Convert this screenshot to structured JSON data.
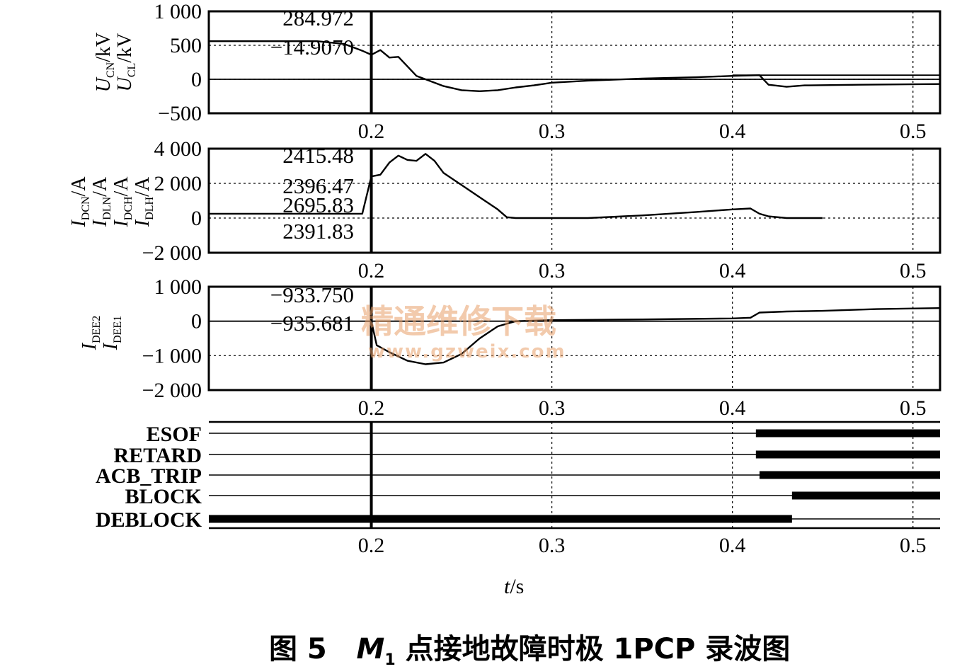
{
  "chart_data": {
    "type": "line",
    "x_ticks": [
      "0.2",
      "0.3",
      "0.4",
      "0.5"
    ],
    "xlim": [
      0.11,
      0.515
    ],
    "xlabel": {
      "var": "t",
      "unit": "/s"
    },
    "cursor_x": 0.2,
    "panels": [
      {
        "id": "voltage",
        "ylim": [
          -500,
          1000
        ],
        "y_ticks": [
          1000,
          500,
          0,
          -500
        ],
        "y_tick_labels": [
          "1 000",
          "500",
          "0",
          "−500"
        ],
        "ylabels": [
          {
            "main": "U",
            "sub": "CN",
            "unit": "/kV"
          },
          {
            "main": "U",
            "sub": "CL",
            "unit": "/kV"
          }
        ],
        "cursor_values": [
          "284.972",
          "−14.9070"
        ],
        "series": [
          {
            "values": [
              [
                0.11,
                560
              ],
              [
                0.17,
                560
              ],
              [
                0.185,
                520
              ],
              [
                0.195,
                420
              ],
              [
                0.2,
                360
              ],
              [
                0.205,
                430
              ],
              [
                0.21,
                320
              ],
              [
                0.215,
                330
              ],
              [
                0.22,
                190
              ],
              [
                0.225,
                50
              ],
              [
                0.23,
                0
              ],
              [
                0.24,
                -100
              ],
              [
                0.25,
                -160
              ],
              [
                0.26,
                -175
              ],
              [
                0.27,
                -160
              ],
              [
                0.28,
                -120
              ],
              [
                0.29,
                -90
              ],
              [
                0.3,
                -50
              ],
              [
                0.32,
                -20
              ],
              [
                0.35,
                10
              ],
              [
                0.38,
                30
              ],
              [
                0.4,
                50
              ],
              [
                0.415,
                60
              ],
              [
                0.42,
                -80
              ],
              [
                0.43,
                -110
              ],
              [
                0.44,
                -90
              ],
              [
                0.47,
                -80
              ],
              [
                0.515,
                -70
              ]
            ]
          },
          {
            "values": [
              [
                0.11,
                0
              ],
              [
                0.515,
                0
              ]
            ]
          },
          {
            "values": [
              [
                0.4,
                60
              ],
              [
                0.515,
                60
              ]
            ]
          }
        ]
      },
      {
        "id": "current-dc",
        "ylim": [
          -2000,
          4000
        ],
        "y_ticks": [
          4000,
          2000,
          0,
          -2000
        ],
        "y_tick_labels": [
          "4 000",
          "2 000",
          "0",
          "−2 000"
        ],
        "ylabels": [
          {
            "main": "I",
            "sub": "DCN",
            "unit": "/A"
          },
          {
            "main": "I",
            "sub": "DLN",
            "unit": "/A"
          },
          {
            "main": "I",
            "sub": "DCH",
            "unit": "/A"
          },
          {
            "main": "I",
            "sub": "DLH",
            "unit": "/A"
          }
        ],
        "cursor_values": [
          "2415.48",
          "2396.47",
          "2695.83",
          "2391.83"
        ],
        "series": [
          {
            "values": [
              [
                0.11,
                250
              ],
              [
                0.195,
                250
              ],
              [
                0.2,
                2400
              ],
              [
                0.205,
                2500
              ],
              [
                0.21,
                3200
              ],
              [
                0.215,
                3600
              ],
              [
                0.22,
                3350
              ],
              [
                0.225,
                3300
              ],
              [
                0.23,
                3700
              ],
              [
                0.235,
                3300
              ],
              [
                0.24,
                2600
              ],
              [
                0.25,
                1900
              ],
              [
                0.26,
                1200
              ],
              [
                0.27,
                500
              ],
              [
                0.275,
                50
              ],
              [
                0.28,
                0
              ],
              [
                0.32,
                0
              ],
              [
                0.35,
                150
              ],
              [
                0.38,
                350
              ],
              [
                0.4,
                500
              ],
              [
                0.41,
                550
              ],
              [
                0.415,
                250
              ],
              [
                0.42,
                100
              ],
              [
                0.43,
                0
              ],
              [
                0.45,
                0
              ]
            ]
          }
        ]
      },
      {
        "id": "current-dee",
        "ylim": [
          -2000,
          1000
        ],
        "y_ticks": [
          1000,
          0,
          -1000,
          -2000
        ],
        "y_tick_labels": [
          "1 000",
          "0",
          "−1 000",
          "−2 000"
        ],
        "ylabels": [
          {
            "main": "I",
            "sub": "DEE2",
            "unit": ""
          },
          {
            "main": "I",
            "sub": "DEE1",
            "unit": ""
          }
        ],
        "cursor_values": [
          "−933.750",
          "−935.681"
        ],
        "series": [
          {
            "values": [
              [
                0.2,
                0
              ],
              [
                0.203,
                -700
              ],
              [
                0.21,
                -900
              ],
              [
                0.22,
                -1150
              ],
              [
                0.23,
                -1250
              ],
              [
                0.24,
                -1200
              ],
              [
                0.25,
                -950
              ],
              [
                0.26,
                -500
              ],
              [
                0.27,
                -150
              ],
              [
                0.28,
                0
              ],
              [
                0.3,
                30
              ],
              [
                0.35,
                50
              ],
              [
                0.4,
                80
              ],
              [
                0.41,
                100
              ],
              [
                0.415,
                250
              ],
              [
                0.43,
                280
              ],
              [
                0.45,
                300
              ],
              [
                0.48,
                350
              ],
              [
                0.515,
                380
              ]
            ]
          },
          {
            "values": [
              [
                0.11,
                0
              ],
              [
                0.515,
                0
              ]
            ]
          }
        ]
      }
    ],
    "signals": [
      {
        "name": "ESOF",
        "on": [
          [
            0.413,
            0.515
          ]
        ]
      },
      {
        "name": "RETARD",
        "on": [
          [
            0.413,
            0.515
          ]
        ]
      },
      {
        "name": "ACB_TRIP",
        "on": [
          [
            0.415,
            0.515
          ]
        ]
      },
      {
        "name": "BLOCK",
        "on": [
          [
            0.433,
            0.515
          ]
        ]
      },
      {
        "name": "DEBLOCK",
        "on": [
          [
            0.11,
            0.433
          ]
        ]
      }
    ]
  },
  "watermark": {
    "line1": "精通维修下载",
    "line2": "www.gzweix.com"
  },
  "caption": {
    "fig_no": "图 5",
    "m": "M",
    "m_sub": "1",
    "text": "点接地故障时极 1PCP 录波图"
  }
}
